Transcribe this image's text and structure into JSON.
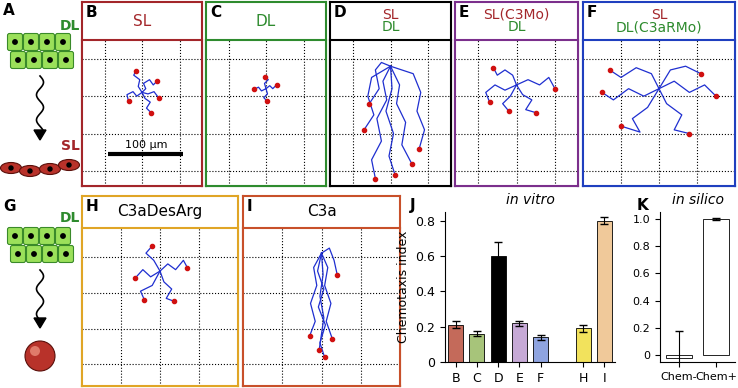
{
  "cartoons": [
    {
      "label": "A",
      "texts": [
        {
          "text": "DL",
          "color": "#2e8b2e"
        },
        {
          "text": "SL",
          "color": "#a3262a"
        }
      ]
    },
    {
      "label": "G",
      "texts": [
        {
          "text": "DL",
          "color": "#2e8b2e"
        }
      ]
    }
  ],
  "panels": [
    {
      "label": "B",
      "title_lines": [
        {
          "text": "SL",
          "color": "#a3262a"
        }
      ],
      "frame_color": "#a3262a",
      "xlim": [
        -80,
        80
      ],
      "ylim": [
        -170,
        25
      ],
      "xticks": [
        -50,
        0,
        50
      ],
      "yticks": [
        -150,
        -100,
        -50,
        0
      ],
      "grid": true,
      "tick_labels": false,
      "scale_bar": {
        "text": "100 µm",
        "length": 100
      },
      "tracks": [
        [
          [
            0,
            -45
          ],
          [
            5,
            -40
          ],
          [
            2,
            -33
          ],
          [
            10,
            -28
          ],
          [
            15,
            -35
          ],
          [
            20,
            -30
          ]
        ],
        [
          [
            0,
            -45
          ],
          [
            -7,
            -50
          ],
          [
            -12,
            -44
          ],
          [
            -20,
            -48
          ],
          [
            -18,
            -57
          ]
        ],
        [
          [
            0,
            -45
          ],
          [
            4,
            -53
          ],
          [
            11,
            -58
          ],
          [
            6,
            -66
          ],
          [
            12,
            -72
          ]
        ],
        [
          [
            0,
            -45
          ],
          [
            -5,
            -37
          ],
          [
            -3,
            -28
          ],
          [
            -11,
            -22
          ],
          [
            -8,
            -16
          ]
        ],
        [
          [
            0,
            -45
          ],
          [
            8,
            -47
          ],
          [
            16,
            -44
          ],
          [
            22,
            -52
          ]
        ]
      ]
    },
    {
      "label": "C",
      "title_lines": [
        {
          "text": "DL",
          "color": "#2e8b2e"
        }
      ],
      "frame_color": "#2e8b2e",
      "xlim": [
        -80,
        80
      ],
      "ylim": [
        -170,
        25
      ],
      "xticks": [
        -50,
        0,
        50
      ],
      "yticks": [
        -150,
        -100,
        -50,
        0
      ],
      "grid": true,
      "tick_labels": false,
      "tracks": [
        [
          [
            0,
            -40
          ],
          [
            5,
            -36
          ],
          [
            9,
            -40
          ],
          [
            14,
            -35
          ]
        ],
        [
          [
            0,
            -40
          ],
          [
            -6,
            -43
          ],
          [
            -10,
            -38
          ],
          [
            -16,
            -41
          ]
        ],
        [
          [
            0,
            -40
          ],
          [
            2,
            -47
          ],
          [
            -3,
            -52
          ],
          [
            1,
            -56
          ]
        ],
        [
          [
            0,
            -40
          ],
          [
            -2,
            -33
          ],
          [
            3,
            -28
          ],
          [
            -1,
            -24
          ]
        ]
      ]
    },
    {
      "label": "D",
      "title_lines": [
        {
          "text": "SL",
          "color": "#a3262a"
        },
        {
          "text": "DL",
          "color": "#2e8b2e"
        }
      ],
      "frame_color": "#000000",
      "xlim": [
        -80,
        80
      ],
      "ylim": [
        -170,
        25
      ],
      "xticks": [
        -50,
        0,
        50
      ],
      "yticks": [
        -150,
        -100,
        -50,
        0
      ],
      "grid": true,
      "tick_labels": false,
      "tracks": [
        [
          [
            0,
            -10
          ],
          [
            -10,
            -30
          ],
          [
            -5,
            -55
          ],
          [
            -18,
            -80
          ],
          [
            -12,
            -110
          ],
          [
            -25,
            -135
          ],
          [
            -20,
            -160
          ]
        ],
        [
          [
            0,
            -10
          ],
          [
            12,
            -35
          ],
          [
            8,
            -60
          ],
          [
            20,
            -85
          ],
          [
            15,
            -115
          ],
          [
            28,
            -140
          ]
        ],
        [
          [
            0,
            -10
          ],
          [
            -25,
            -25
          ],
          [
            -30,
            -50
          ],
          [
            -22,
            -75
          ],
          [
            -35,
            -95
          ]
        ],
        [
          [
            0,
            -10
          ],
          [
            30,
            -20
          ],
          [
            40,
            -45
          ],
          [
            35,
            -70
          ],
          [
            45,
            -95
          ],
          [
            38,
            -120
          ]
        ],
        [
          [
            0,
            -10
          ],
          [
            2,
            -40
          ],
          [
            -6,
            -70
          ],
          [
            4,
            -100
          ],
          [
            -2,
            -130
          ],
          [
            6,
            -155
          ]
        ],
        [
          [
            0,
            -10
          ],
          [
            -12,
            -5
          ],
          [
            -20,
            -15
          ],
          [
            -15,
            -40
          ],
          [
            -28,
            -60
          ]
        ]
      ]
    },
    {
      "label": "E",
      "title_lines": [
        {
          "text": "SL(C3Mo)",
          "color": "#a3262a"
        },
        {
          "text": "DL",
          "color": "#2e8b2e"
        }
      ],
      "frame_color": "#7b2f8c",
      "xlim": [
        -80,
        80
      ],
      "ylim": [
        -170,
        25
      ],
      "xticks": [
        -50,
        0,
        50
      ],
      "yticks": [
        -150,
        -100,
        -50,
        0
      ],
      "grid": true,
      "tick_labels": false,
      "tracks": [
        [
          [
            0,
            -35
          ],
          [
            15,
            -28
          ],
          [
            30,
            -35
          ],
          [
            42,
            -25
          ],
          [
            50,
            -40
          ]
        ],
        [
          [
            0,
            -35
          ],
          [
            -15,
            -42
          ],
          [
            -28,
            -35
          ],
          [
            -40,
            -45
          ],
          [
            -35,
            -58
          ]
        ],
        [
          [
            0,
            -35
          ],
          [
            8,
            -48
          ],
          [
            20,
            -55
          ],
          [
            12,
            -68
          ],
          [
            25,
            -72
          ]
        ],
        [
          [
            0,
            -35
          ],
          [
            -5,
            -22
          ],
          [
            -15,
            -15
          ],
          [
            -25,
            -22
          ],
          [
            -30,
            -12
          ]
        ],
        [
          [
            0,
            -35
          ],
          [
            -8,
            -50
          ],
          [
            -18,
            -60
          ],
          [
            -10,
            -70
          ]
        ]
      ]
    },
    {
      "label": "F",
      "title_lines": [
        {
          "text": "SL",
          "color": "#a3262a"
        },
        {
          "text": "DL(C3aRMo)",
          "color": "#2e8b2e"
        }
      ],
      "frame_color": "#1f3fbf",
      "xlim": [
        -100,
        100
      ],
      "ylim": [
        -170,
        25
      ],
      "xticks": [
        -50,
        0,
        50
      ],
      "yticks": [
        -150,
        -100,
        -50,
        0
      ],
      "grid": true,
      "tick_labels": false,
      "tracks": [
        [
          [
            0,
            -40
          ],
          [
            20,
            -30
          ],
          [
            40,
            -45
          ],
          [
            60,
            -35
          ],
          [
            75,
            -50
          ]
        ],
        [
          [
            0,
            -40
          ],
          [
            -20,
            -50
          ],
          [
            -40,
            -40
          ],
          [
            -60,
            -55
          ],
          [
            -75,
            -45
          ]
        ],
        [
          [
            0,
            -40
          ],
          [
            10,
            -60
          ],
          [
            30,
            -75
          ],
          [
            20,
            -95
          ],
          [
            40,
            -100
          ]
        ],
        [
          [
            0,
            -40
          ],
          [
            -10,
            -20
          ],
          [
            -30,
            -12
          ],
          [
            -50,
            -25
          ],
          [
            -65,
            -15
          ]
        ],
        [
          [
            0,
            -40
          ],
          [
            -15,
            -65
          ],
          [
            -35,
            -80
          ],
          [
            -25,
            -98
          ],
          [
            -50,
            -90
          ]
        ],
        [
          [
            0,
            -40
          ],
          [
            15,
            -15
          ],
          [
            35,
            -10
          ],
          [
            55,
            -20
          ]
        ]
      ]
    },
    {
      "label": "H",
      "title_lines": [
        {
          "text": "C3aDesArg",
          "color": "#000000"
        }
      ],
      "frame_color": "#e0a526",
      "xlim": [
        -100,
        100
      ],
      "ylim": [
        -180,
        40
      ],
      "xticks": [
        -50,
        0,
        50
      ],
      "yticks": [
        -150,
        -100,
        -50,
        0
      ],
      "grid": true,
      "tick_labels": false,
      "tracks": [
        [
          [
            0,
            -20
          ],
          [
            10,
            -10
          ],
          [
            20,
            -18
          ],
          [
            30,
            -5
          ],
          [
            35,
            -15
          ]
        ],
        [
          [
            0,
            -20
          ],
          [
            -12,
            -28
          ],
          [
            -22,
            -18
          ],
          [
            -32,
            -30
          ]
        ],
        [
          [
            0,
            -20
          ],
          [
            5,
            -35
          ],
          [
            15,
            -45
          ],
          [
            8,
            -58
          ],
          [
            18,
            -62
          ]
        ],
        [
          [
            0,
            -20
          ],
          [
            -8,
            -5
          ],
          [
            -18,
            5
          ],
          [
            -10,
            15
          ]
        ],
        [
          [
            0,
            -20
          ],
          [
            -10,
            -40
          ],
          [
            -25,
            -48
          ],
          [
            -20,
            -60
          ]
        ]
      ]
    },
    {
      "label": "I",
      "title_lines": [
        {
          "text": "C3a",
          "color": "#000000"
        }
      ],
      "frame_color": "#c8502a",
      "xlim": [
        -100,
        100
      ],
      "ylim": [
        -180,
        40
      ],
      "xticks": [
        -50,
        0,
        50
      ],
      "yticks": [
        -150,
        -100,
        -50,
        0
      ],
      "grid": true,
      "tick_labels": false,
      "tracks": [
        [
          [
            0,
            5
          ],
          [
            -5,
            -20
          ],
          [
            3,
            -45
          ],
          [
            -4,
            -70
          ],
          [
            5,
            -95
          ],
          [
            -2,
            -120
          ],
          [
            4,
            -140
          ]
        ],
        [
          [
            0,
            5
          ],
          [
            8,
            -15
          ],
          [
            4,
            -40
          ],
          [
            12,
            -65
          ],
          [
            6,
            -90
          ],
          [
            14,
            -115
          ]
        ],
        [
          [
            0,
            5
          ],
          [
            -10,
            -15
          ],
          [
            -6,
            -40
          ],
          [
            -14,
            -65
          ],
          [
            -8,
            -90
          ],
          [
            -15,
            -110
          ]
        ],
        [
          [
            0,
            5
          ],
          [
            2,
            -25
          ],
          [
            -2,
            -55
          ],
          [
            3,
            -85
          ],
          [
            -3,
            -130
          ]
        ],
        [
          [
            0,
            5
          ],
          [
            10,
            12
          ],
          [
            16,
            -5
          ],
          [
            20,
            -25
          ]
        ]
      ]
    }
  ],
  "chart_data": [
    {
      "type": "bar",
      "label": "J",
      "title": "in vitro",
      "y_label": "Chemotaxis index",
      "categories": [
        "B",
        "C",
        "D",
        "E",
        "F",
        null,
        "H",
        "I"
      ],
      "values": [
        0.21,
        0.16,
        0.6,
        0.22,
        0.14,
        null,
        0.19,
        0.8
      ],
      "errors": [
        0.02,
        0.015,
        0.08,
        0.015,
        0.015,
        null,
        0.02,
        0.02
      ],
      "colors": [
        "#c46a5a",
        "#a7c47a",
        "#000000",
        "#c6a9d6",
        "#8fa4e0",
        null,
        "#f2e25c",
        "#f0c99a"
      ],
      "ylim": [
        0,
        0.85
      ],
      "yticks": [
        0,
        0.2,
        0.4,
        0.6,
        0.8
      ]
    },
    {
      "type": "bar",
      "label": "K",
      "title": "in silico",
      "categories": [
        "Chem-",
        "Chem+"
      ],
      "values": [
        -0.02,
        1.0
      ],
      "errors": [
        0.2,
        0.005
      ],
      "colors": [
        "#ffffff",
        "#ffffff"
      ],
      "ylim": [
        -0.05,
        1.05
      ],
      "yticks": [
        0,
        0.2,
        0.4,
        0.6,
        0.8,
        {
          "value": 1,
          "label": "1.0"
        }
      ]
    }
  ]
}
